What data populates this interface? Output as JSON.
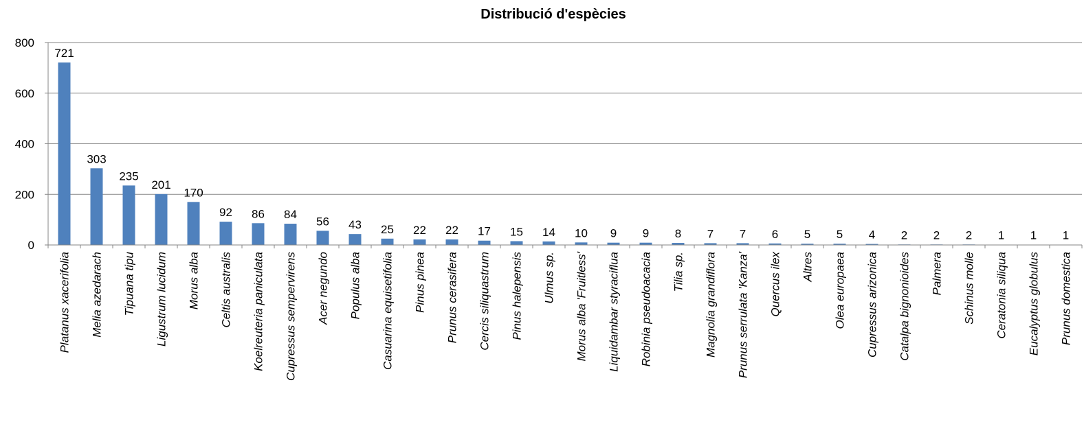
{
  "chart_data": {
    "type": "bar",
    "title": "Distribució d'espècies",
    "categories": [
      "Platanus xacerifolia",
      "Melia azedarach",
      "Tipuana tipu",
      "Ligustrum lucidum",
      "Morus alba",
      "Celtis australis",
      "Koelreuteria paniculata",
      "Cupressus sempervirens",
      "Acer negundo",
      "Populus alba",
      "Casuarina equisetifolia",
      "Pinus pinea",
      "Prunus cerasifera",
      "Cercis siliquastrum",
      "Pinus halepensis",
      "Ulmus sp.",
      "Morus alba 'Fruitless'",
      "Liquidambar styraciflua",
      "Robinia pseudoacacia",
      "Tilia sp.",
      "Magnolia grandiflora",
      "Prunus serrulata 'Kanza'",
      "Quercus ilex",
      "Altres",
      "Olea europaea",
      "Cupressus arizonica",
      "Catalpa bignonioides",
      "Palmera",
      "Schinus molle",
      "Ceratonia siliqua",
      "Eucalyptus globulus",
      "Prunus domestica"
    ],
    "values": [
      721,
      303,
      235,
      201,
      170,
      92,
      86,
      84,
      56,
      43,
      25,
      22,
      22,
      17,
      15,
      14,
      10,
      9,
      9,
      8,
      7,
      7,
      6,
      5,
      5,
      4,
      2,
      2,
      2,
      1,
      1,
      1
    ],
    "color": "#4f81bd",
    "ylim": [
      0,
      800
    ],
    "yticks": [
      0,
      200,
      400,
      600,
      800
    ],
    "grid": true
  }
}
